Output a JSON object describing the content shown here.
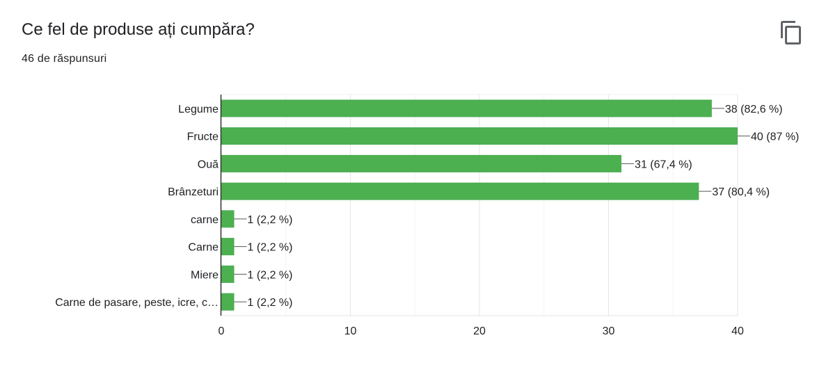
{
  "header": {
    "question": "Ce fel de produse ați cumpăra?",
    "response_count": "46 de răspunsuri",
    "copy_icon": "copy-icon"
  },
  "colors": {
    "bar": "#4caf50",
    "text": "#202124",
    "grid": "#ebebeb",
    "axis": "#333333",
    "icon": "#5f6368"
  },
  "chart_data": {
    "type": "bar",
    "orientation": "horizontal",
    "categories": [
      "Legume",
      "Fructe",
      "Ouă",
      "Brânzeturi",
      "carne",
      "Carne",
      "Miere",
      "Carne de pasare, peste, icre, c…"
    ],
    "values": [
      38,
      40,
      31,
      37,
      1,
      1,
      1,
      1
    ],
    "data_labels": [
      "38 (82,6 %)",
      "40 (87 %)",
      "31 (67,4 %)",
      "37 (80,4 %)",
      "1 (2,2 %)",
      "1 (2,2 %)",
      "1 (2,2 %)",
      "1 (2,2 %)"
    ],
    "xlim": [
      0,
      40
    ],
    "xticks": [
      0,
      10,
      20,
      30,
      40
    ],
    "grid": true,
    "legend": "none"
  }
}
